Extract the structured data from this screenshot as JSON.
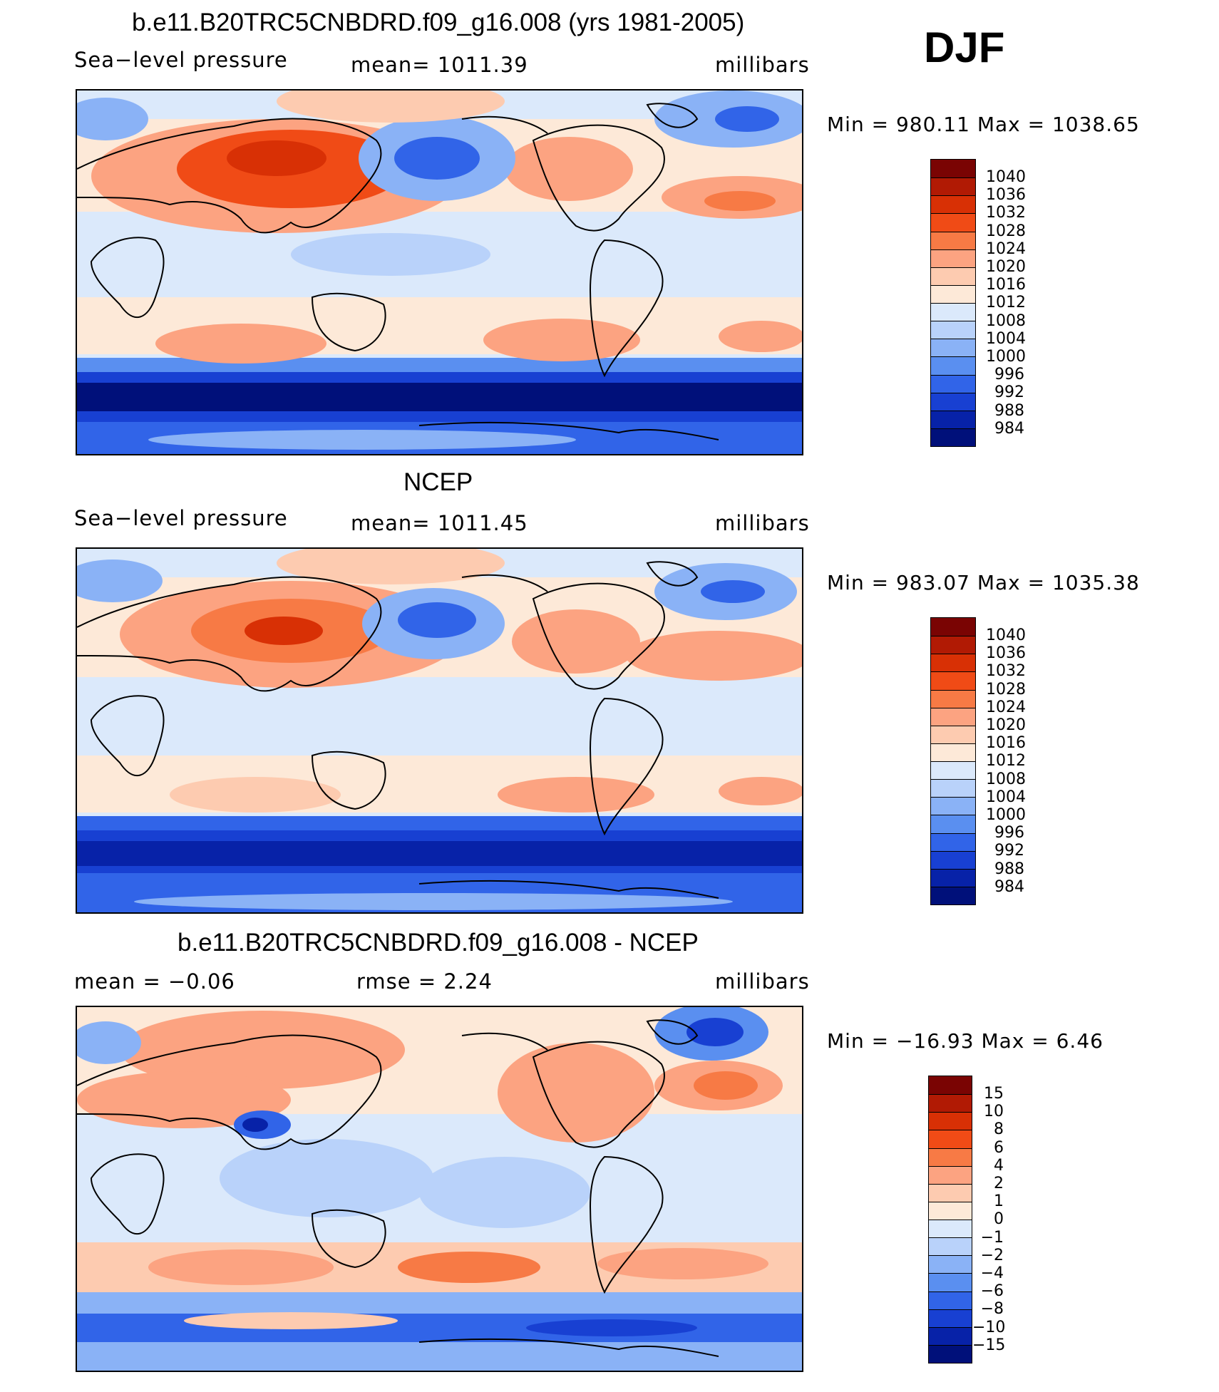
{
  "season": "DJF",
  "panels": [
    {
      "id": "model",
      "title": "b.e11.B20TRC5CNBDRD.f09_g16.008 (yrs 1981-2005)",
      "left_label": "Sea−level pressure",
      "center_label": "mean=  1011.39",
      "units": "millibars",
      "minmax": "Min  =  980.11  Max  =  1038.65",
      "colorbar": {
        "labels": [
          "1040",
          "1036",
          "1032",
          "1028",
          "1024",
          "1020",
          "1016",
          "1012",
          "1008",
          "1004",
          "1000",
          "996",
          "992",
          "988",
          "984"
        ],
        "colors": [
          "#7a0403",
          "#b11a04",
          "#d83005",
          "#f04b16",
          "#f77a45",
          "#fca381",
          "#fdcbb0",
          "#fde9d8",
          "#dbe9fb",
          "#b9d2fa",
          "#8ab2f6",
          "#5a8ff0",
          "#3164e8",
          "#1840d2",
          "#0722a8",
          "#00107a"
        ]
      }
    },
    {
      "id": "obs",
      "title": "NCEP",
      "left_label": "Sea−level pressure",
      "center_label": "mean=  1011.45",
      "units": "millibars",
      "minmax": "Min  =  983.07  Max  =  1035.38",
      "colorbar": {
        "labels": [
          "1040",
          "1036",
          "1032",
          "1028",
          "1024",
          "1020",
          "1016",
          "1012",
          "1008",
          "1004",
          "1000",
          "996",
          "992",
          "988",
          "984"
        ],
        "colors": [
          "#7a0403",
          "#b11a04",
          "#d83005",
          "#f04b16",
          "#f77a45",
          "#fca381",
          "#fdcbb0",
          "#fde9d8",
          "#dbe9fb",
          "#b9d2fa",
          "#8ab2f6",
          "#5a8ff0",
          "#3164e8",
          "#1840d2",
          "#0722a8",
          "#00107a"
        ]
      }
    },
    {
      "id": "diff",
      "title": "b.e11.B20TRC5CNBDRD.f09_g16.008 - NCEP",
      "left_label": "mean  =   −0.06",
      "center_label": "rmse  =     2.24",
      "units": "millibars",
      "minmax": "Min  =  −16.93  Max  =     6.46",
      "colorbar": {
        "labels": [
          "15",
          "10",
          "8",
          "6",
          "4",
          "2",
          "1",
          "0",
          "−1",
          "−2",
          "−4",
          "−6",
          "−8",
          "−10",
          "−15"
        ],
        "colors": [
          "#7a0403",
          "#b11a04",
          "#d83005",
          "#f04b16",
          "#f77a45",
          "#fca381",
          "#fdcbb0",
          "#fde9d8",
          "#dbe9fb",
          "#b9d2fa",
          "#8ab2f6",
          "#5a8ff0",
          "#3164e8",
          "#1840d2",
          "#0722a8",
          "#00107a"
        ]
      }
    }
  ],
  "chart_data": [
    {
      "type": "heatmap",
      "title": "b.e11.B20TRC5CNBDRD.f09_g16.008 (yrs 1981-2005)",
      "variable": "Sea−level pressure",
      "units": "millibars",
      "mean": 1011.39,
      "min": 980.11,
      "max": 1038.65,
      "levels": [
        984,
        988,
        992,
        996,
        1000,
        1004,
        1008,
        1012,
        1016,
        1020,
        1024,
        1028,
        1032,
        1036,
        1040
      ]
    },
    {
      "type": "heatmap",
      "title": "NCEP",
      "variable": "Sea−level pressure",
      "units": "millibars",
      "mean": 1011.45,
      "min": 983.07,
      "max": 1035.38,
      "levels": [
        984,
        988,
        992,
        996,
        1000,
        1004,
        1008,
        1012,
        1016,
        1020,
        1024,
        1028,
        1032,
        1036,
        1040
      ]
    },
    {
      "type": "heatmap",
      "title": "b.e11.B20TRC5CNBDRD.f09_g16.008 - NCEP",
      "units": "millibars",
      "mean": -0.06,
      "rmse": 2.24,
      "min": -16.93,
      "max": 6.46,
      "levels": [
        -15,
        -10,
        -8,
        -6,
        -4,
        -2,
        -1,
        0,
        1,
        2,
        4,
        6,
        8,
        10,
        15
      ]
    }
  ]
}
